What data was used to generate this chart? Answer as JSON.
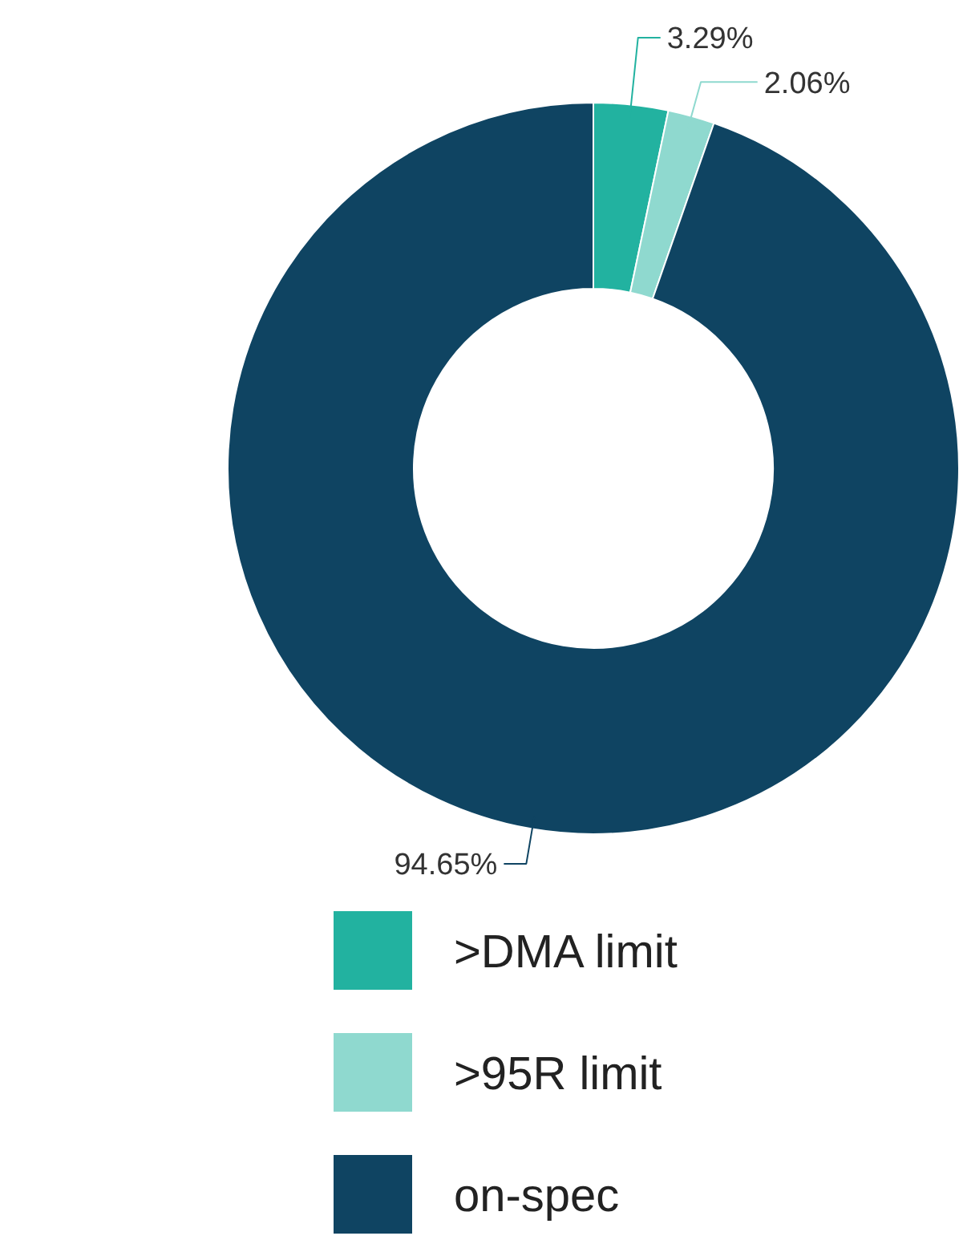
{
  "chart_data": {
    "type": "donut",
    "categories": [
      ">DMA limit",
      ">95R limit",
      "on-spec"
    ],
    "values": [
      3.29,
      2.06,
      94.65
    ],
    "colors": [
      "#22b2a0",
      "#8fd9cf",
      "#0f4462"
    ],
    "value_labels": [
      "3.29%",
      "2.06%",
      "94.65%"
    ],
    "legend": "bottom"
  }
}
